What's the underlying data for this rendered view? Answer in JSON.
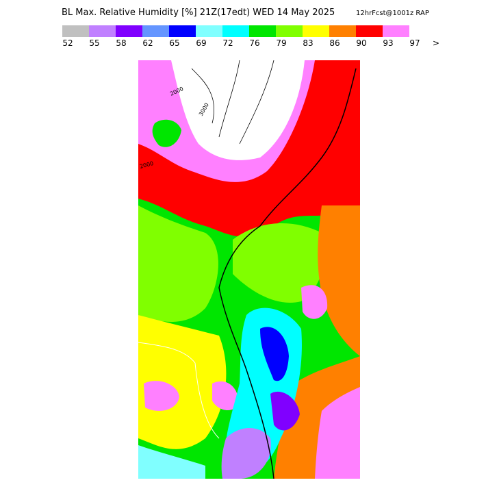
{
  "header": {
    "title": "BL Max. Relative Humidity [%] 21Z(17edt) WED 14 May 2025",
    "forecast": "12hrFcst@1001z RAP"
  },
  "legend": {
    "colors": [
      "#c0c0c0",
      "#c080ff",
      "#8000ff",
      "#6495ff",
      "#0000ff",
      "#80ffff",
      "#00ffff",
      "#00e600",
      "#80ff00",
      "#ffff00",
      "#ff8000",
      "#ff0000",
      "#ff80ff"
    ],
    "labels": [
      "52",
      "55",
      "58",
      "62",
      "65",
      "69",
      "72",
      "76",
      "79",
      "83",
      "86",
      "90",
      "93",
      "97",
      ">"
    ]
  },
  "map": {
    "contour_labels": [
      "2000",
      "3000",
      "2000"
    ]
  }
}
